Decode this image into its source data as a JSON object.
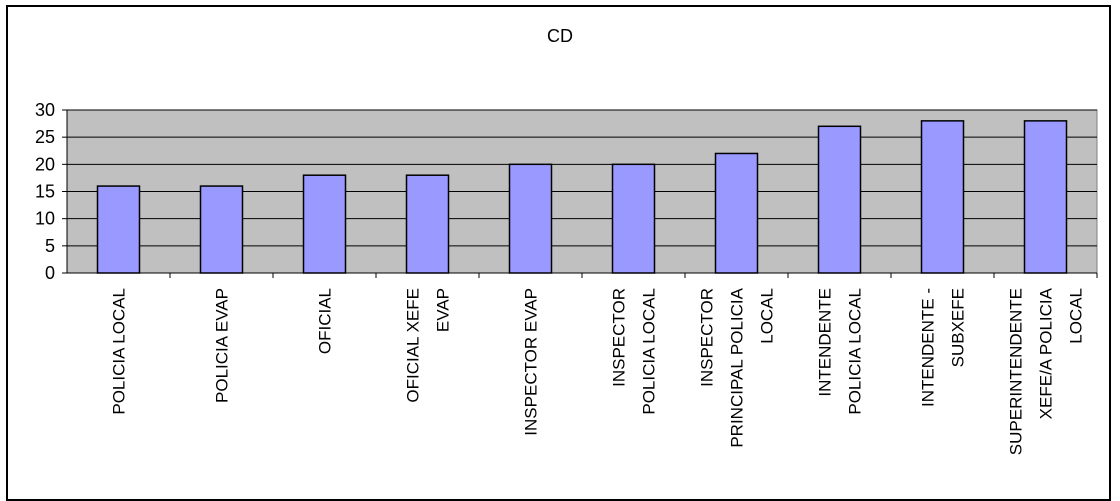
{
  "chart_data": {
    "type": "bar",
    "title": "CD",
    "xlabel": "",
    "ylabel": "",
    "ylim": [
      0,
      30
    ],
    "yticks": [
      0,
      5,
      10,
      15,
      20,
      25,
      30
    ],
    "grid": true,
    "legend": "none",
    "categories": [
      [
        "POLICIA LOCAL"
      ],
      [
        "POLICIA EVAP"
      ],
      [
        "OFICIAL"
      ],
      [
        "OFICIAL XEFE",
        "EVAP"
      ],
      [
        "INSPECTOR EVAP"
      ],
      [
        "INSPECTOR",
        "POLICIA LOCAL"
      ],
      [
        "INSPECTOR",
        "PRINCIPAL POLICIA",
        "LOCAL"
      ],
      [
        "INTENDENTE",
        "POLICIA LOCAL"
      ],
      [
        "INTENDENTE -",
        "SUBXEFE"
      ],
      [
        "SUPERINTENDENTE",
        "XEFE/A POLICIA",
        "LOCAL"
      ]
    ],
    "values": [
      16,
      16,
      18,
      18,
      20,
      20,
      22,
      27,
      28,
      28
    ],
    "colors": {
      "plot_background": "#c0c0c0",
      "bar_fill": "#9999ff",
      "bar_stroke": "#000000",
      "grid": "#000000"
    }
  }
}
